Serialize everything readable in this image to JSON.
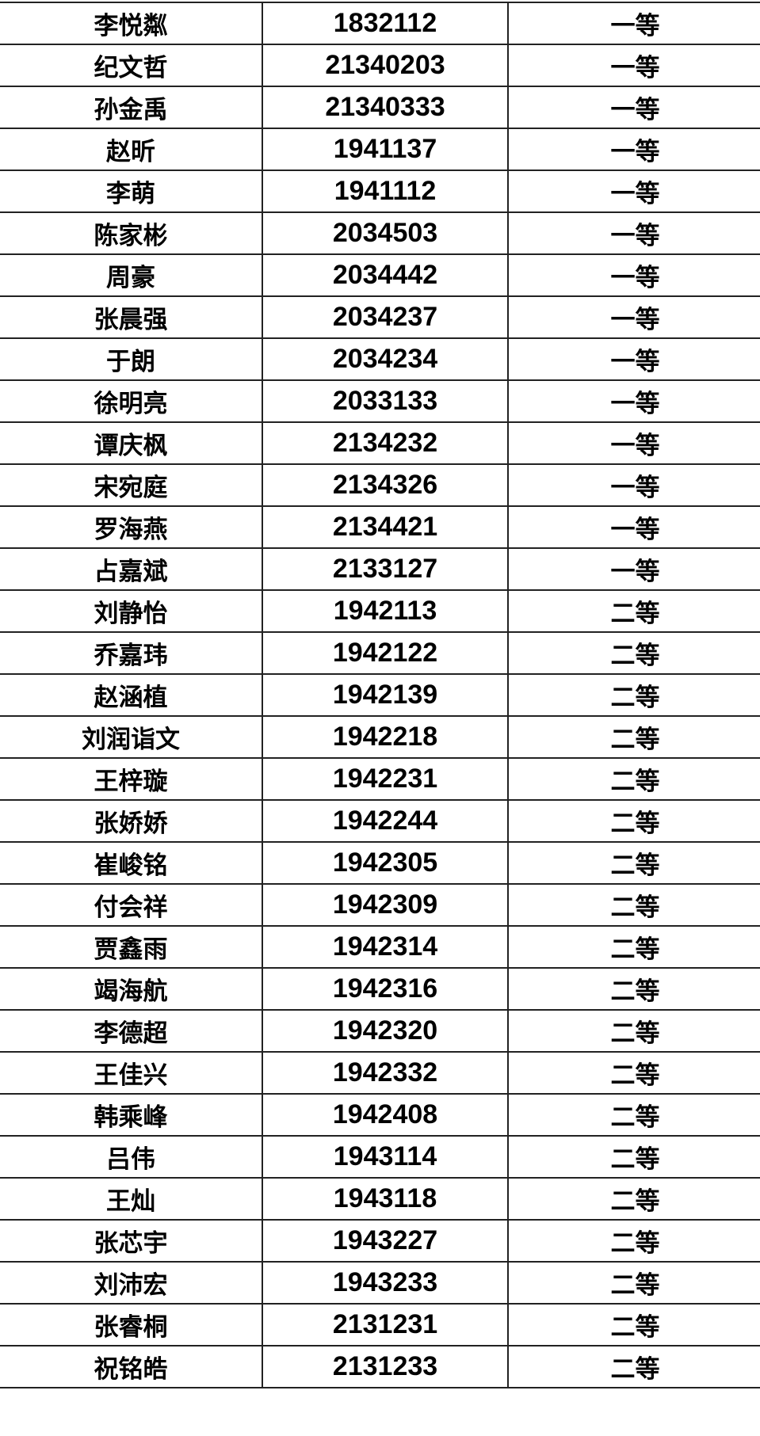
{
  "rows": [
    {
      "name": "李悦粼",
      "id": "1832112",
      "grade": "一等"
    },
    {
      "name": "纪文哲",
      "id": "21340203",
      "grade": "一等"
    },
    {
      "name": "孙金禹",
      "id": "21340333",
      "grade": "一等"
    },
    {
      "name": "赵昕",
      "id": "1941137",
      "grade": "一等"
    },
    {
      "name": "李萌",
      "id": "1941112",
      "grade": "一等"
    },
    {
      "name": "陈家彬",
      "id": "2034503",
      "grade": "一等"
    },
    {
      "name": "周豪",
      "id": "2034442",
      "grade": "一等"
    },
    {
      "name": "张晨强",
      "id": "2034237",
      "grade": "一等"
    },
    {
      "name": "于朗",
      "id": "2034234",
      "grade": "一等"
    },
    {
      "name": "徐明亮",
      "id": "2033133",
      "grade": "一等"
    },
    {
      "name": "谭庆枫",
      "id": "2134232",
      "grade": "一等"
    },
    {
      "name": "宋宛庭",
      "id": "2134326",
      "grade": "一等"
    },
    {
      "name": "罗海燕",
      "id": "2134421",
      "grade": "一等"
    },
    {
      "name": "占嘉斌",
      "id": "2133127",
      "grade": "一等"
    },
    {
      "name": "刘静怡",
      "id": "1942113",
      "grade": "二等"
    },
    {
      "name": "乔嘉玮",
      "id": "1942122",
      "grade": "二等"
    },
    {
      "name": "赵涵植",
      "id": "1942139",
      "grade": "二等"
    },
    {
      "name": "刘润诣文",
      "id": "1942218",
      "grade": "二等"
    },
    {
      "name": "王梓璇",
      "id": "1942231",
      "grade": "二等"
    },
    {
      "name": "张娇娇",
      "id": "1942244",
      "grade": "二等"
    },
    {
      "name": "崔峻铭",
      "id": "1942305",
      "grade": "二等"
    },
    {
      "name": "付会祥",
      "id": "1942309",
      "grade": "二等"
    },
    {
      "name": "贾鑫雨",
      "id": "1942314",
      "grade": "二等"
    },
    {
      "name": "竭海航",
      "id": "1942316",
      "grade": "二等"
    },
    {
      "name": "李德超",
      "id": "1942320",
      "grade": "二等"
    },
    {
      "name": "王佳兴",
      "id": "1942332",
      "grade": "二等"
    },
    {
      "name": "韩乘峰",
      "id": "1942408",
      "grade": "二等"
    },
    {
      "name": "吕伟",
      "id": "1943114",
      "grade": "二等"
    },
    {
      "name": "王灿",
      "id": "1943118",
      "grade": "二等"
    },
    {
      "name": "张芯宇",
      "id": "1943227",
      "grade": "二等"
    },
    {
      "name": "刘沛宏",
      "id": "1943233",
      "grade": "二等"
    },
    {
      "name": "张睿桐",
      "id": "2131231",
      "grade": "二等"
    },
    {
      "name": "祝铭皓",
      "id": "2131233",
      "grade": "二等"
    }
  ]
}
